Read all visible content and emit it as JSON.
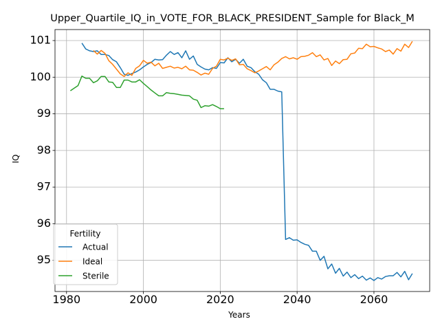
{
  "chart_data": {
    "type": "line",
    "title": "Upper_Quartile_IQ_in_VOTE_FOR_BLACK_PRESIDENT_Sample for Black_M",
    "xlabel": "Years",
    "ylabel": "IQ",
    "xlim": [
      1977,
      2074.5
    ],
    "ylim": [
      94.15,
      101.3
    ],
    "xticks": [
      1980,
      2000,
      2020,
      2040,
      2060
    ],
    "yticks": [
      95,
      96,
      97,
      98,
      99,
      100,
      101
    ],
    "grid": true,
    "legend": {
      "title": "Fertility",
      "placement": "lower-left"
    },
    "series": [
      {
        "name": "Actual",
        "color": "#1f77b4",
        "x": [
          1984,
          1985,
          1986,
          1987,
          1988,
          1989,
          1990,
          1991,
          1992,
          1993,
          1994,
          1995,
          1996,
          1997,
          1998,
          1999,
          2000,
          2001,
          2002,
          2003,
          2004,
          2005,
          2006,
          2007,
          2008,
          2009,
          2010,
          2011,
          2012,
          2013,
          2014,
          2015,
          2016,
          2017,
          2018,
          2019,
          2020,
          2021,
          2022,
          2023,
          2024,
          2025,
          2026,
          2027,
          2028,
          2029,
          2030,
          2031,
          2032,
          2033,
          2034,
          2035,
          2036,
          2037,
          2038,
          2039,
          2040,
          2041,
          2042,
          2043,
          2044,
          2045,
          2046,
          2047,
          2048,
          2049,
          2050,
          2051,
          2052,
          2053,
          2054,
          2055,
          2056,
          2057,
          2058,
          2059,
          2060,
          2061,
          2062,
          2063,
          2064,
          2065,
          2066,
          2067,
          2068,
          2069,
          2070
        ],
        "y": [
          100.93,
          100.77,
          100.72,
          100.7,
          100.72,
          100.62,
          100.62,
          100.59,
          100.48,
          100.42,
          100.26,
          100.08,
          100.05,
          100.1,
          100.14,
          100.2,
          100.28,
          100.35,
          100.4,
          100.49,
          100.47,
          100.48,
          100.6,
          100.7,
          100.62,
          100.67,
          100.53,
          100.72,
          100.49,
          100.58,
          100.35,
          100.28,
          100.22,
          100.2,
          100.26,
          100.24,
          100.4,
          100.39,
          100.53,
          100.42,
          100.49,
          100.38,
          100.49,
          100.3,
          100.26,
          100.15,
          100.08,
          99.93,
          99.85,
          99.67,
          99.67,
          99.62,
          99.6,
          95.57,
          95.62,
          95.55,
          95.56,
          95.49,
          95.44,
          95.41,
          95.25,
          95.25,
          95.0,
          95.11,
          94.77,
          94.9,
          94.65,
          94.78,
          94.57,
          94.68,
          94.53,
          94.61,
          94.5,
          94.57,
          94.46,
          94.52,
          94.45,
          94.53,
          94.49,
          94.56,
          94.58,
          94.58,
          94.67,
          94.55,
          94.7,
          94.47,
          94.64
        ]
      },
      {
        "name": "Ideal",
        "color": "#ff7f0e",
        "x": [
          1987,
          1988,
          1989,
          1990,
          1991,
          1992,
          1993,
          1994,
          1995,
          1996,
          1997,
          1998,
          1999,
          2000,
          2001,
          2002,
          2003,
          2004,
          2005,
          2006,
          2007,
          2008,
          2009,
          2010,
          2011,
          2012,
          2013,
          2014,
          2015,
          2016,
          2017,
          2018,
          2019,
          2020,
          2021,
          2022,
          2023,
          2024,
          2025,
          2026,
          2027,
          2028,
          2029,
          2030,
          2031,
          2032,
          2033,
          2034,
          2035,
          2036,
          2037,
          2038,
          2039,
          2040,
          2041,
          2042,
          2043,
          2044,
          2045,
          2046,
          2047,
          2048,
          2049,
          2050,
          2051,
          2052,
          2053,
          2054,
          2055,
          2056,
          2057,
          2058,
          2059,
          2060,
          2061,
          2062,
          2063,
          2064,
          2065,
          2066,
          2067,
          2068,
          2069,
          2070
        ],
        "y": [
          100.73,
          100.63,
          100.73,
          100.65,
          100.45,
          100.35,
          100.22,
          100.09,
          100.02,
          100.12,
          100.05,
          100.24,
          100.31,
          100.46,
          100.38,
          100.41,
          100.31,
          100.38,
          100.24,
          100.27,
          100.3,
          100.25,
          100.27,
          100.23,
          100.3,
          100.2,
          100.19,
          100.13,
          100.06,
          100.11,
          100.08,
          100.24,
          100.3,
          100.49,
          100.47,
          100.52,
          100.46,
          100.5,
          100.34,
          100.35,
          100.23,
          100.18,
          100.12,
          100.17,
          100.23,
          100.29,
          100.2,
          100.34,
          100.41,
          100.51,
          100.56,
          100.5,
          100.53,
          100.49,
          100.56,
          100.57,
          100.6,
          100.67,
          100.56,
          100.61,
          100.47,
          100.51,
          100.32,
          100.44,
          100.37,
          100.48,
          100.49,
          100.64,
          100.66,
          100.79,
          100.78,
          100.9,
          100.83,
          100.84,
          100.8,
          100.77,
          100.7,
          100.74,
          100.63,
          100.78,
          100.71,
          100.9,
          100.81,
          100.98
        ]
      },
      {
        "name": "Sterile",
        "color": "#2ca02c",
        "x": [
          1981,
          1982,
          1983,
          1984,
          1985,
          1986,
          1987,
          1988,
          1989,
          1990,
          1991,
          1992,
          1993,
          1994,
          1995,
          1996,
          1997,
          1998,
          1999,
          2000,
          2001,
          2002,
          2003,
          2004,
          2005,
          2006,
          2007,
          2008,
          2009,
          2010,
          2011,
          2012,
          2013,
          2014,
          2015,
          2016,
          2017,
          2018,
          2019,
          2020,
          2021
        ],
        "y": [
          99.63,
          99.7,
          99.77,
          100.03,
          99.97,
          99.97,
          99.85,
          99.9,
          100.02,
          100.02,
          99.87,
          99.86,
          99.72,
          99.72,
          99.92,
          99.92,
          99.87,
          99.87,
          99.93,
          99.83,
          99.74,
          99.65,
          99.57,
          99.49,
          99.49,
          99.58,
          99.56,
          99.55,
          99.53,
          99.51,
          99.5,
          99.49,
          99.4,
          99.37,
          99.17,
          99.22,
          99.21,
          99.25,
          99.2,
          99.14,
          99.14
        ]
      }
    ]
  }
}
